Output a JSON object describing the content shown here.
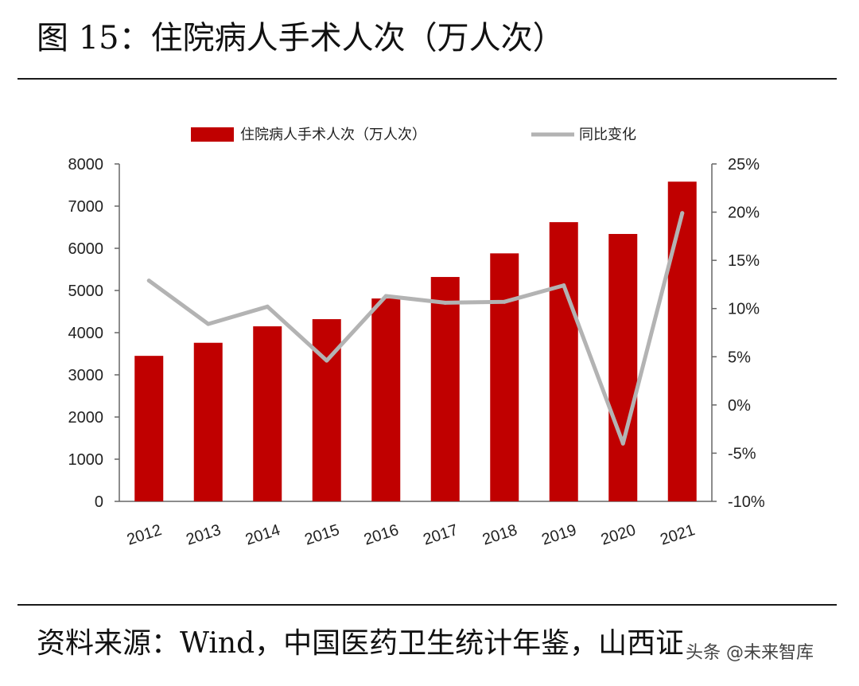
{
  "figure": {
    "title": "图 15：住院病人手术人次（万人次）",
    "source": "资料来源：Wind，中国医药卫生统计年鉴，山西证",
    "watermark": "头条 @未来智库"
  },
  "colors": {
    "bar": "#c00000",
    "line": "#b3b3b3",
    "axis": "#666666",
    "text": "#222222"
  },
  "chart_data": {
    "type": "bar",
    "title": "",
    "xlabel": "",
    "ylabel": "",
    "categories": [
      "2012",
      "2013",
      "2014",
      "2015",
      "2016",
      "2017",
      "2018",
      "2019",
      "2020",
      "2021"
    ],
    "series": [
      {
        "name": "住院病人手术人次（万人次）",
        "type": "bar",
        "axis": "left",
        "values": [
          3450,
          3760,
          4150,
          4320,
          4810,
          5320,
          5880,
          6620,
          6340,
          7580
        ]
      },
      {
        "name": "同比变化",
        "type": "line",
        "axis": "right",
        "values": [
          12.9,
          8.4,
          10.2,
          4.6,
          11.3,
          10.6,
          10.7,
          12.4,
          -4.0,
          19.9
        ]
      }
    ],
    "ylim": [
      0,
      8000
    ],
    "yticks": [
      "0",
      "1000",
      "2000",
      "3000",
      "4000",
      "5000",
      "6000",
      "7000",
      "8000"
    ],
    "ylim_right": [
      -10,
      25
    ],
    "yticks_right": [
      "-10%",
      "-5%",
      "0%",
      "5%",
      "10%",
      "15%",
      "20%",
      "25%"
    ],
    "legend": "top",
    "grid": false
  }
}
